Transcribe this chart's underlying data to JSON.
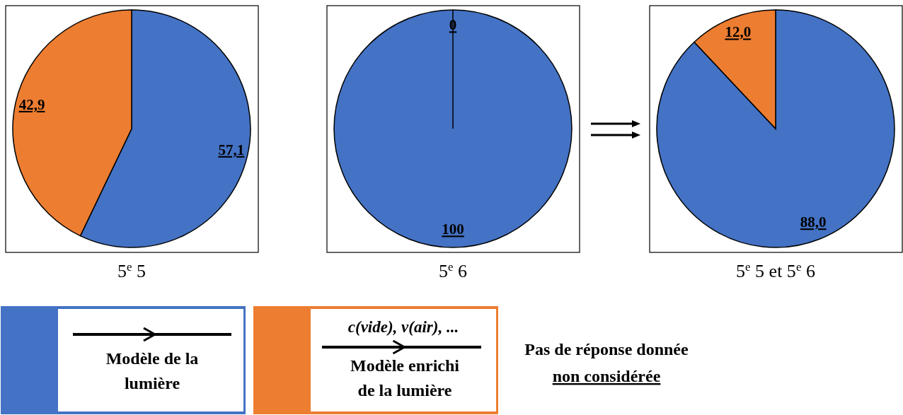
{
  "chart_data": [
    {
      "type": "pie",
      "title": "5$^{e}$ 5",
      "categories": [
        "Modèle de la lumière",
        "Modèle enrichi de la lumière"
      ],
      "values": [
        57.1,
        42.9
      ],
      "colors": [
        "#4472c4",
        "#ed7d31"
      ],
      "value_labels": [
        "57,1",
        "42,9"
      ],
      "legend": "bottom",
      "annotations": [
        "c(vide), v(air), ...",
        "Pas de réponse donnée",
        "non considérée"
      ]
    },
    {
      "type": "pie",
      "title": "5$^{e}$ 6",
      "categories": [
        null,
        null
      ],
      "values": [
        100,
        0
      ],
      "colors": [
        "#4472c4",
        "#ed7d31"
      ],
      "value_labels": [
        "100",
        "0"
      ]
    },
    {
      "type": "pie",
      "title": "5$^{e}$ 5 et 5$^{e}$ 6",
      "categories": [
        null,
        null
      ],
      "values": [
        88.0,
        12.0
      ],
      "colors": [
        "#4472c4",
        "#ed7d31"
      ],
      "value_labels": [
        "88,0",
        "12,0"
      ]
    }
  ]
}
